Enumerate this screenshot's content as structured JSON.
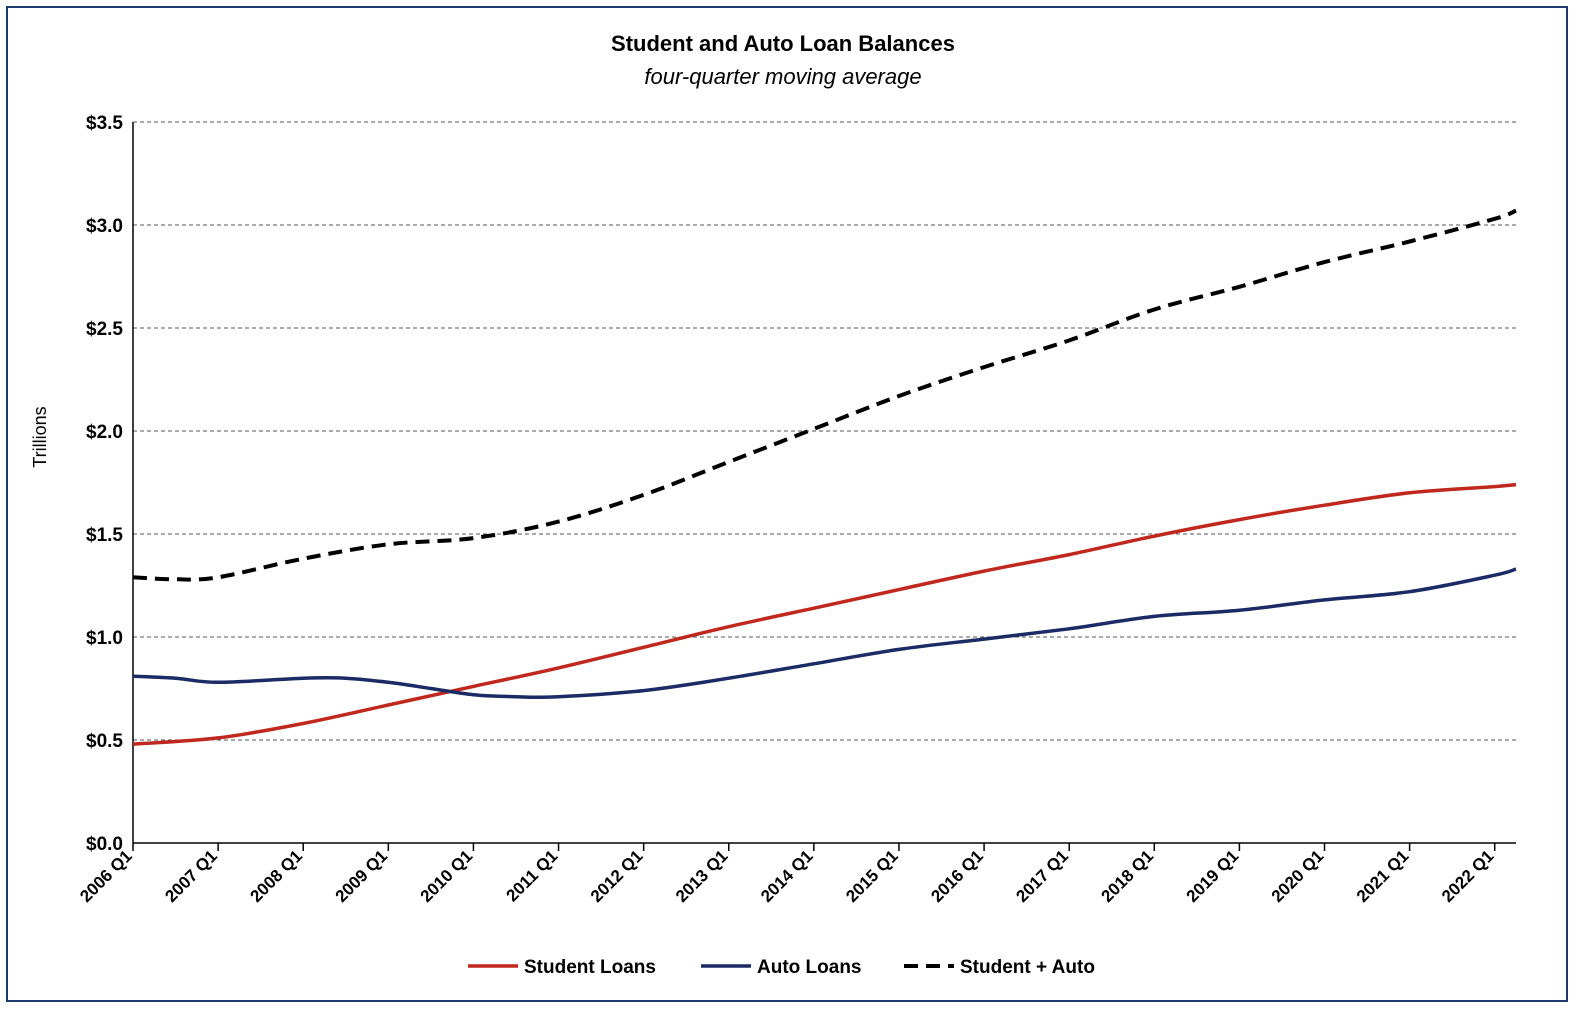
{
  "chart_data": {
    "type": "line",
    "title": "Student and Auto Loan Balances",
    "subtitle": "four-quarter moving average",
    "ylabel": "Trillions",
    "xlabel": "",
    "ylim": [
      0,
      3.5
    ],
    "yticks": [
      0,
      0.5,
      1.0,
      1.5,
      2.0,
      2.5,
      3.0,
      3.5
    ],
    "ytick_labels": [
      "$0.0",
      "$0.5",
      "$1.0",
      "$1.5",
      "$2.0",
      "$2.5",
      "$3.0",
      "$3.5"
    ],
    "x_range": [
      "2006 Q1",
      "2022 Q2"
    ],
    "xtick_labels": [
      "2006 Q1",
      "2007 Q1",
      "2008 Q1",
      "2009 Q1",
      "2010 Q1",
      "2011 Q1",
      "2012 Q1",
      "2013 Q1",
      "2014 Q1",
      "2015 Q1",
      "2016 Q1",
      "2017 Q1",
      "2018 Q1",
      "2019 Q1",
      "2020 Q1",
      "2021 Q1",
      "2022 Q1"
    ],
    "grid": "horizontal dashed",
    "legend_position": "bottom",
    "series": [
      {
        "name": "Student Loans",
        "color": "#c0281e",
        "style": "solid",
        "x": [
          "2006 Q1",
          "2007 Q1",
          "2008 Q1",
          "2009 Q1",
          "2010 Q1",
          "2011 Q1",
          "2012 Q1",
          "2013 Q1",
          "2014 Q1",
          "2015 Q1",
          "2016 Q1",
          "2017 Q1",
          "2018 Q1",
          "2019 Q1",
          "2020 Q1",
          "2021 Q1",
          "2022 Q1",
          "2022 Q2"
        ],
        "values": [
          0.48,
          0.51,
          0.58,
          0.67,
          0.76,
          0.85,
          0.95,
          1.05,
          1.14,
          1.23,
          1.32,
          1.4,
          1.49,
          1.57,
          1.64,
          1.7,
          1.73,
          1.74
        ]
      },
      {
        "name": "Auto Loans",
        "color": "#1a2b66",
        "style": "solid",
        "x": [
          "2006 Q1",
          "2006 Q3",
          "2007 Q1",
          "2008 Q1",
          "2008 Q3",
          "2009 Q1",
          "2009 Q3",
          "2010 Q1",
          "2010 Q3",
          "2011 Q1",
          "2012 Q1",
          "2013 Q1",
          "2014 Q1",
          "2015 Q1",
          "2016 Q1",
          "2017 Q1",
          "2018 Q1",
          "2019 Q1",
          "2020 Q1",
          "2021 Q1",
          "2022 Q1",
          "2022 Q2"
        ],
        "values": [
          0.81,
          0.8,
          0.78,
          0.8,
          0.8,
          0.78,
          0.75,
          0.72,
          0.71,
          0.71,
          0.74,
          0.8,
          0.87,
          0.94,
          0.99,
          1.04,
          1.1,
          1.13,
          1.18,
          1.22,
          1.3,
          1.33
        ]
      },
      {
        "name": "Student + Auto",
        "color": "#000000",
        "style": "dashed",
        "x": [
          "2006 Q1",
          "2006 Q3",
          "2007 Q1",
          "2008 Q1",
          "2009 Q1",
          "2010 Q1",
          "2011 Q1",
          "2012 Q1",
          "2013 Q1",
          "2014 Q1",
          "2015 Q1",
          "2016 Q1",
          "2017 Q1",
          "2018 Q1",
          "2019 Q1",
          "2020 Q1",
          "2021 Q1",
          "2022 Q1",
          "2022 Q2"
        ],
        "values": [
          1.29,
          1.28,
          1.29,
          1.38,
          1.45,
          1.48,
          1.56,
          1.69,
          1.85,
          2.01,
          2.17,
          2.31,
          2.44,
          2.59,
          2.7,
          2.82,
          2.92,
          3.03,
          3.07
        ]
      }
    ]
  }
}
